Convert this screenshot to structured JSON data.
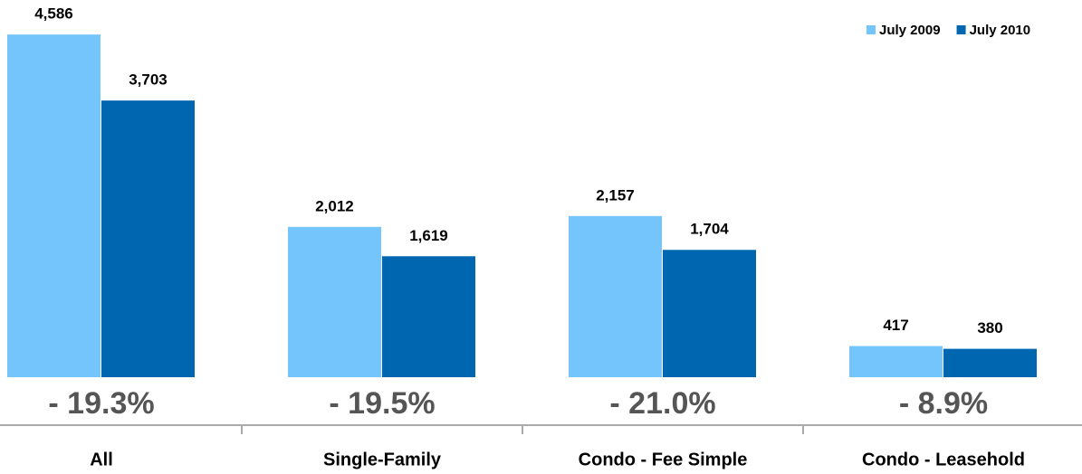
{
  "chart_data": {
    "type": "bar",
    "categories": [
      "All",
      "Single-Family",
      "Condo - Fee Simple",
      "Condo - Leasehold"
    ],
    "series": [
      {
        "name": "July 2009",
        "color": "#73c5fc",
        "values": [
          4586,
          2012,
          2157,
          417
        ],
        "value_labels": [
          "4,586",
          "2,012",
          "2,157",
          "417"
        ]
      },
      {
        "name": "July 2010",
        "color": "#0066b0",
        "values": [
          3703,
          1619,
          1704,
          380
        ],
        "value_labels": [
          "3,703",
          "1,619",
          "1,704",
          "380"
        ]
      }
    ],
    "annotations": [
      "- 19.3%",
      "- 19.5%",
      "- 21.0%",
      "- 8.9%"
    ],
    "ylim": [
      0,
      5000
    ],
    "legend": "top-right"
  }
}
